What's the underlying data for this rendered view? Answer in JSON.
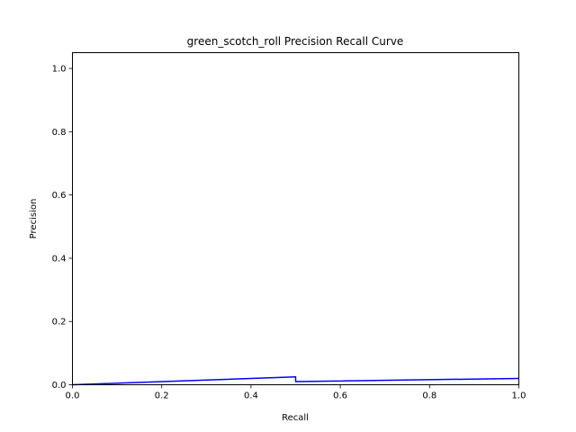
{
  "chart_data": {
    "type": "line",
    "title": "green_scotch_roll Precision Recall Curve",
    "xlabel": "Recall",
    "ylabel": "Precision",
    "xlim": [
      0.0,
      1.0
    ],
    "ylim": [
      0.0,
      1.05
    ],
    "xticks": [
      "0.0",
      "0.2",
      "0.4",
      "0.6",
      "0.8",
      "1.0"
    ],
    "yticks": [
      "0.0",
      "0.2",
      "0.4",
      "0.6",
      "0.8",
      "1.0"
    ],
    "grid": false,
    "series": [
      {
        "color": "#0000ff",
        "x": [
          0.0,
          0.5,
          0.5,
          1.0
        ],
        "y": [
          0.0,
          0.025,
          0.01,
          0.02
        ]
      }
    ]
  }
}
